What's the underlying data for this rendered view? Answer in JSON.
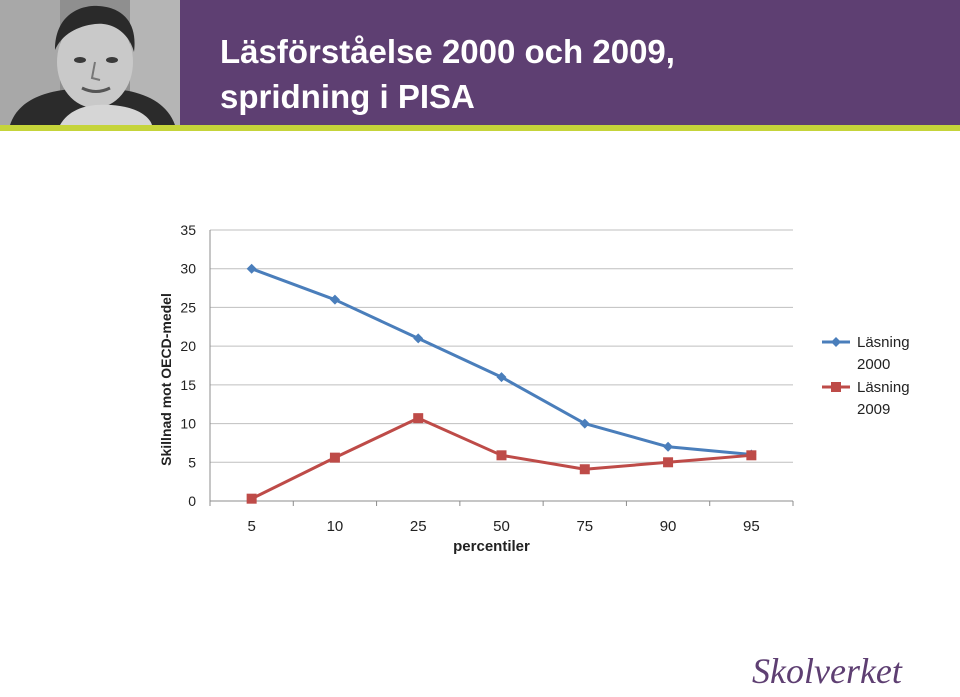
{
  "slide": {
    "title_line1": "Läsförståelse 2000 och 2009,",
    "title_line2": "spridning i PISA",
    "logo_text": "Skolverket"
  },
  "colors": {
    "header_bg": "#5e3f72",
    "header_stripe": "#c5d43a",
    "series_2000": "#4a7ebb",
    "series_2009": "#be4b48"
  },
  "chart_data": {
    "type": "line",
    "categories": [
      "5",
      "10",
      "25",
      "50",
      "75",
      "90",
      "95"
    ],
    "series": [
      {
        "name": "Läsning 2000",
        "values": [
          30,
          26,
          21,
          16,
          10,
          7,
          6
        ],
        "marker": "diamond",
        "color": "#4a7ebb"
      },
      {
        "name": "Läsning 2009",
        "values": [
          0.3,
          5.6,
          10.7,
          5.9,
          4.1,
          5,
          5.9
        ],
        "marker": "square",
        "color": "#be4b48"
      }
    ],
    "xlabel": "percentiler",
    "ylabel": "Skillnad mot OECD-medel",
    "ylim": [
      0,
      35
    ],
    "yticks": [
      0,
      5,
      10,
      15,
      20,
      25,
      30,
      35
    ],
    "grid": true,
    "legend_position": "right"
  }
}
